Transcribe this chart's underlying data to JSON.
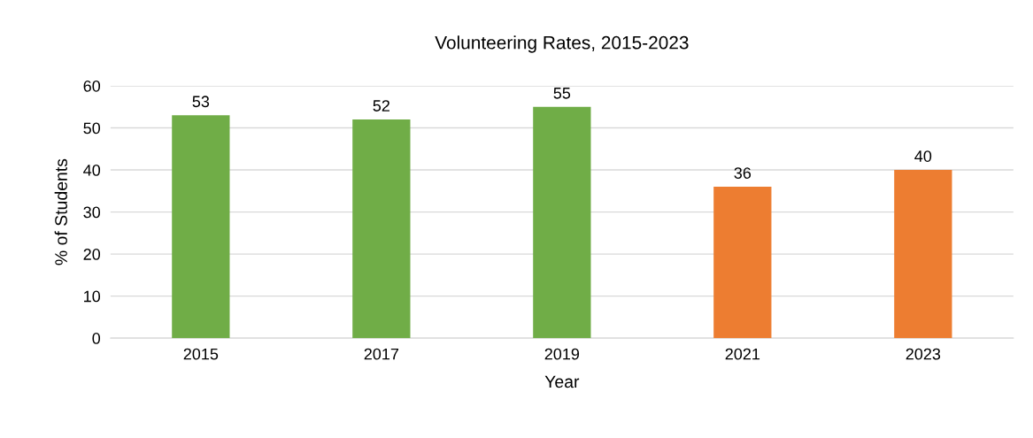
{
  "chart_data": {
    "type": "bar",
    "title": "Volunteering Rates, 2015-2023",
    "xlabel": "Year",
    "ylabel": "% of Students",
    "categories": [
      "2015",
      "2017",
      "2019",
      "2021",
      "2023"
    ],
    "values": [
      53,
      52,
      55,
      36,
      40
    ],
    "colors": [
      "#70ad47",
      "#70ad47",
      "#70ad47",
      "#ed7d31",
      "#ed7d31"
    ],
    "ylim": [
      0,
      60
    ],
    "yticks": [
      0,
      10,
      20,
      30,
      40,
      50,
      60
    ],
    "grid": "y",
    "data_labels": true
  }
}
